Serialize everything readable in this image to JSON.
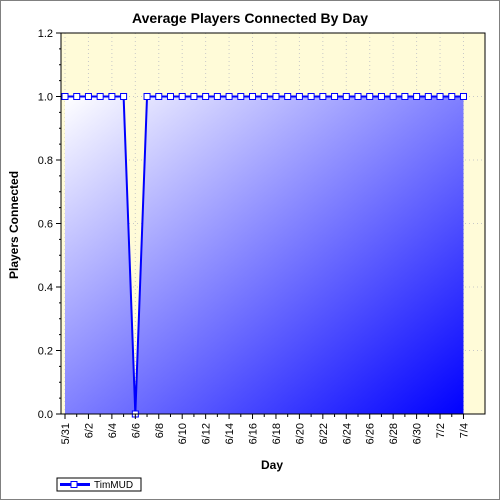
{
  "chart_data": {
    "type": "line",
    "title": "Average Players Connected By Day",
    "xlabel": "Day",
    "ylabel": "Players Connected",
    "ylim": [
      0,
      1.2
    ],
    "yticks": [
      "0.0",
      "0.2",
      "0.4",
      "0.6",
      "0.8",
      "1.0",
      "1.2"
    ],
    "x": [
      "5/31",
      "6/1",
      "6/2",
      "6/3",
      "6/4",
      "6/5",
      "6/6",
      "6/7",
      "6/8",
      "6/9",
      "6/10",
      "6/11",
      "6/12",
      "6/13",
      "6/14",
      "6/15",
      "6/16",
      "6/17",
      "6/18",
      "6/19",
      "6/20",
      "6/21",
      "6/22",
      "6/23",
      "6/24",
      "6/25",
      "6/26",
      "6/27",
      "6/28",
      "6/29",
      "6/30",
      "7/1",
      "7/2",
      "7/3",
      "7/4"
    ],
    "xtick_labels": [
      "5/31",
      "6/2",
      "6/4",
      "6/6",
      "6/8",
      "6/10",
      "6/12",
      "6/14",
      "6/16",
      "6/18",
      "6/20",
      "6/22",
      "6/24",
      "6/26",
      "6/28",
      "6/30",
      "7/2",
      "7/4"
    ],
    "series": [
      {
        "name": "TimMUD",
        "values": [
          1,
          1,
          1,
          1,
          1,
          1,
          0,
          1,
          1,
          1,
          1,
          1,
          1,
          1,
          1,
          1,
          1,
          1,
          1,
          1,
          1,
          1,
          1,
          1,
          1,
          1,
          1,
          1,
          1,
          1,
          1,
          1,
          1,
          1,
          1
        ],
        "color": "#0000ff"
      }
    ],
    "grid": true,
    "legend": "bottom-left",
    "colors": {
      "plot_background": "#fffbd8",
      "fill_start": "#ffffff",
      "fill_end": "#0000ff",
      "marker_fill": "#ffffff",
      "grid": "#c8c8c8"
    }
  }
}
